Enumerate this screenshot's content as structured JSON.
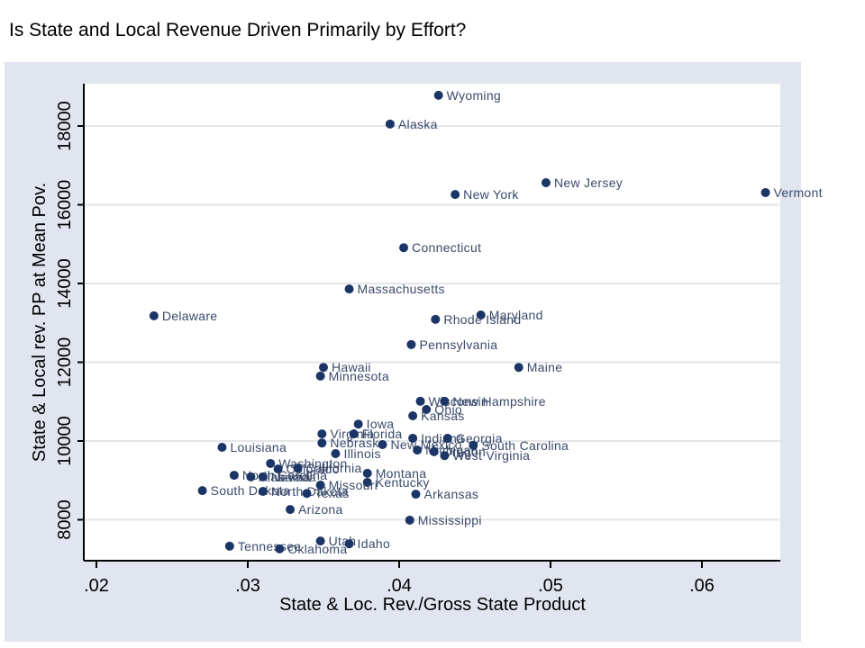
{
  "page": {
    "title": "Is State and Local Revenue Driven Primarily  by Effort?"
  },
  "chart_data": {
    "type": "scatter",
    "title": "Is State and Local Revenue Driven Primarily  by Effort?",
    "xlabel": "State & Loc. Rev./Gross State Product",
    "ylabel": "State & Local rev. PP at Mean Pov.",
    "xlim": [
      0.019,
      0.0655
    ],
    "ylim": [
      7000,
      19100
    ],
    "xticks": [
      0.02,
      0.03,
      0.04,
      0.05,
      0.06
    ],
    "xtick_labels": [
      ".02",
      ".03",
      ".04",
      ".05",
      ".06"
    ],
    "yticks": [
      8000,
      10000,
      12000,
      14000,
      16000,
      18000
    ],
    "ytick_labels": [
      "8000",
      "10000",
      "12000",
      "14000",
      "16000",
      "18000"
    ],
    "grid": "horizontal",
    "legend": "none",
    "marker_color": "#1a3566",
    "background_color": "#e0e5ef",
    "points": [
      {
        "label": "Wyoming",
        "x": 0.0426,
        "y": 18780
      },
      {
        "label": "Alaska",
        "x": 0.0394,
        "y": 18050
      },
      {
        "label": "New Jersey",
        "x": 0.0497,
        "y": 16560
      },
      {
        "label": "New York",
        "x": 0.0437,
        "y": 16260
      },
      {
        "label": "Vermont",
        "x": 0.0642,
        "y": 16310
      },
      {
        "label": "Connecticut",
        "x": 0.0403,
        "y": 14910
      },
      {
        "label": "Massachusetts",
        "x": 0.0367,
        "y": 13860
      },
      {
        "label": "Delaware",
        "x": 0.0238,
        "y": 13180
      },
      {
        "label": "Maryland",
        "x": 0.0454,
        "y": 13200
      },
      {
        "label": "Rhode Island",
        "x": 0.0424,
        "y": 13090
      },
      {
        "label": "Pennsylvania",
        "x": 0.0408,
        "y": 12450
      },
      {
        "label": "Hawaii",
        "x": 0.035,
        "y": 11870
      },
      {
        "label": "Maine",
        "x": 0.0479,
        "y": 11870
      },
      {
        "label": "Minnesota",
        "x": 0.0348,
        "y": 11650
      },
      {
        "label": "Wisconsin",
        "x": 0.0414,
        "y": 11010
      },
      {
        "label": "New Hampshire",
        "x": 0.043,
        "y": 11010
      },
      {
        "label": "Ohio",
        "x": 0.0418,
        "y": 10800
      },
      {
        "label": "Kansas",
        "x": 0.0409,
        "y": 10640
      },
      {
        "label": "Iowa",
        "x": 0.0373,
        "y": 10430
      },
      {
        "label": "Virginia",
        "x": 0.0349,
        "y": 10180
      },
      {
        "label": "Florida",
        "x": 0.037,
        "y": 10180
      },
      {
        "label": "Indiana",
        "x": 0.0409,
        "y": 10070
      },
      {
        "label": "Georgia",
        "x": 0.0432,
        "y": 10070
      },
      {
        "label": "Nebraska",
        "x": 0.0349,
        "y": 9950
      },
      {
        "label": "New Mexico",
        "x": 0.0389,
        "y": 9910
      },
      {
        "label": "Michigan",
        "x": 0.0412,
        "y": 9770
      },
      {
        "label": "Oregon",
        "x": 0.0423,
        "y": 9730
      },
      {
        "label": "West Virginia",
        "x": 0.043,
        "y": 9630
      },
      {
        "label": "South Carolina",
        "x": 0.0449,
        "y": 9890
      },
      {
        "label": "Louisiana",
        "x": 0.0283,
        "y": 9840
      },
      {
        "label": "Illinois",
        "x": 0.0358,
        "y": 9680
      },
      {
        "label": "Washington",
        "x": 0.0315,
        "y": 9430
      },
      {
        "label": "Colorado",
        "x": 0.032,
        "y": 9290
      },
      {
        "label": "California",
        "x": 0.0333,
        "y": 9310
      },
      {
        "label": "North Carolina",
        "x": 0.0291,
        "y": 9130
      },
      {
        "label": "Alabama",
        "x": 0.0302,
        "y": 9090
      },
      {
        "label": "Nevada",
        "x": 0.031,
        "y": 9090
      },
      {
        "label": "Montana",
        "x": 0.0379,
        "y": 9180
      },
      {
        "label": "Kentucky",
        "x": 0.0379,
        "y": 8950
      },
      {
        "label": "Missouri",
        "x": 0.0348,
        "y": 8880
      },
      {
        "label": "South Dakota",
        "x": 0.027,
        "y": 8740
      },
      {
        "label": "North Dakota",
        "x": 0.031,
        "y": 8720
      },
      {
        "label": "Texas",
        "x": 0.0339,
        "y": 8670
      },
      {
        "label": "Arkansas",
        "x": 0.0411,
        "y": 8650
      },
      {
        "label": "Arizona",
        "x": 0.0328,
        "y": 8260
      },
      {
        "label": "Mississippi",
        "x": 0.0407,
        "y": 7990
      },
      {
        "label": "Utah",
        "x": 0.0348,
        "y": 7460
      },
      {
        "label": "Idaho",
        "x": 0.0367,
        "y": 7390
      },
      {
        "label": "Tennessee",
        "x": 0.0288,
        "y": 7330
      },
      {
        "label": "Oklahoma",
        "x": 0.0321,
        "y": 7260
      }
    ]
  }
}
